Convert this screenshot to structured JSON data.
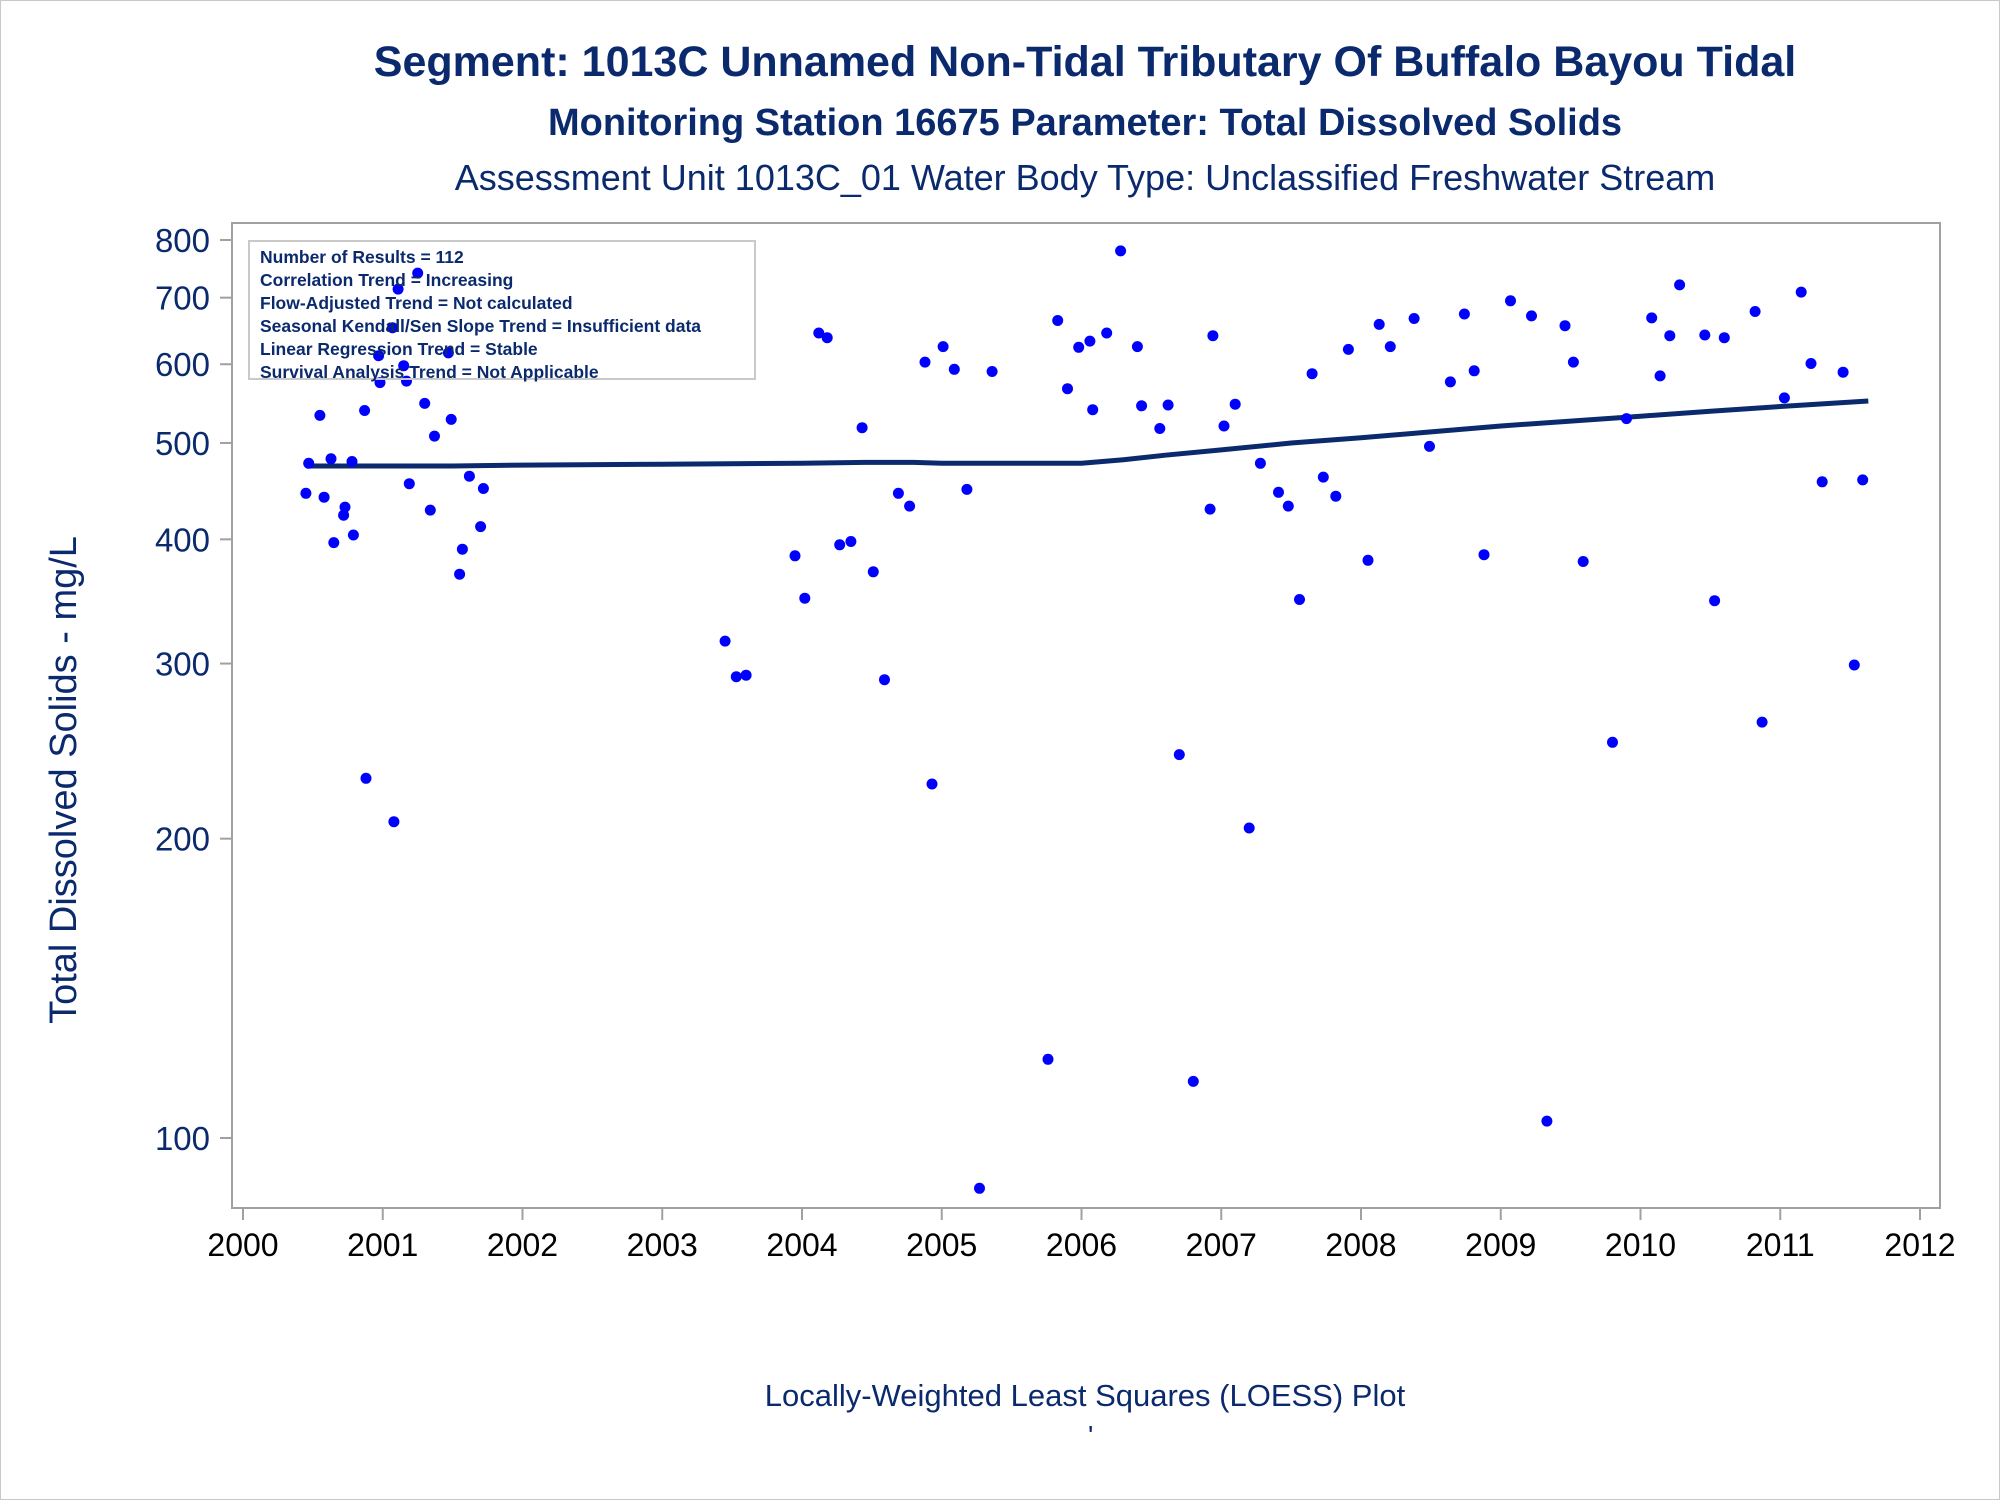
{
  "titles": {
    "line1": "Segment: 1013C  Unnamed Non-Tidal Tributary Of Buffalo Bayou Tidal",
    "line2": "Monitoring Station 16675 Parameter: Total Dissolved Solids",
    "line3": "Assessment Unit 1013C_01   Water Body Type: Unclassified Freshwater Stream"
  },
  "stats": [
    "Number of Results = 112",
    "Correlation Trend = Increasing",
    "Flow-Adjusted Trend = Not calculated",
    "Seasonal Kendall/Sen Slope Trend = Insufficient data",
    "Linear Regression Trend = Stable",
    "Survival Analysis Trend = Not Applicable"
  ],
  "footnote": "Locally-Weighted Least Squares (LOESS) Plot",
  "footnote_mark": "'",
  "colors": {
    "text": "#0b2a6e",
    "points": "#0000ff",
    "trend": "#0b2a6e",
    "axis": "#a0a0a0"
  },
  "chart_data": {
    "type": "scatter",
    "ylabel": "Total Dissolved Solids - mg/L",
    "xlabel": "",
    "y_scale": "log",
    "xlim": [
      2000,
      2012
    ],
    "ylim": [
      88,
      820
    ],
    "x_ticks": [
      "2000",
      "2001",
      "2002",
      "2003",
      "2004",
      "2005",
      "2006",
      "2007",
      "2008",
      "2009",
      "2010",
      "2011",
      "2012"
    ],
    "y_ticks": [
      100,
      200,
      300,
      400,
      500,
      600,
      700,
      800
    ],
    "grid": false,
    "series": [
      {
        "values": [
          {
            "x": 2000.45,
            "y": 445
          },
          {
            "x": 2000.47,
            "y": 477
          },
          {
            "x": 2000.55,
            "y": 533
          },
          {
            "x": 2000.58,
            "y": 441
          },
          {
            "x": 2000.63,
            "y": 482
          },
          {
            "x": 2000.65,
            "y": 397
          },
          {
            "x": 2000.72,
            "y": 423
          },
          {
            "x": 2000.73,
            "y": 431
          },
          {
            "x": 2000.78,
            "y": 479
          },
          {
            "x": 2000.79,
            "y": 404
          },
          {
            "x": 2000.87,
            "y": 539
          },
          {
            "x": 2000.88,
            "y": 230
          },
          {
            "x": 2000.97,
            "y": 612
          },
          {
            "x": 2000.98,
            "y": 575
          },
          {
            "x": 2001.07,
            "y": 653
          },
          {
            "x": 2001.08,
            "y": 208
          },
          {
            "x": 2001.11,
            "y": 714
          },
          {
            "x": 2001.15,
            "y": 598
          },
          {
            "x": 2001.17,
            "y": 577
          },
          {
            "x": 2001.19,
            "y": 455
          },
          {
            "x": 2001.25,
            "y": 741
          },
          {
            "x": 2001.3,
            "y": 548
          },
          {
            "x": 2001.34,
            "y": 428
          },
          {
            "x": 2001.37,
            "y": 508
          },
          {
            "x": 2001.47,
            "y": 616
          },
          {
            "x": 2001.49,
            "y": 528
          },
          {
            "x": 2001.55,
            "y": 369
          },
          {
            "x": 2001.57,
            "y": 391
          },
          {
            "x": 2001.62,
            "y": 463
          },
          {
            "x": 2001.7,
            "y": 412
          },
          {
            "x": 2001.72,
            "y": 450
          },
          {
            "x": 2003.45,
            "y": 316
          },
          {
            "x": 2003.53,
            "y": 291
          },
          {
            "x": 2003.6,
            "y": 292
          },
          {
            "x": 2003.95,
            "y": 385
          },
          {
            "x": 2004.02,
            "y": 349
          },
          {
            "x": 2004.12,
            "y": 645
          },
          {
            "x": 2004.18,
            "y": 638
          },
          {
            "x": 2004.27,
            "y": 395
          },
          {
            "x": 2004.35,
            "y": 398
          },
          {
            "x": 2004.43,
            "y": 518
          },
          {
            "x": 2004.51,
            "y": 371
          },
          {
            "x": 2004.59,
            "y": 289
          },
          {
            "x": 2004.69,
            "y": 445
          },
          {
            "x": 2004.77,
            "y": 432
          },
          {
            "x": 2004.88,
            "y": 603
          },
          {
            "x": 2004.93,
            "y": 227
          },
          {
            "x": 2005.01,
            "y": 625
          },
          {
            "x": 2005.09,
            "y": 593
          },
          {
            "x": 2005.18,
            "y": 449
          },
          {
            "x": 2005.27,
            "y": 89
          },
          {
            "x": 2005.36,
            "y": 590
          },
          {
            "x": 2005.76,
            "y": 120
          },
          {
            "x": 2005.83,
            "y": 664
          },
          {
            "x": 2005.9,
            "y": 567
          },
          {
            "x": 2005.98,
            "y": 624
          },
          {
            "x": 2006.06,
            "y": 633
          },
          {
            "x": 2006.08,
            "y": 540
          },
          {
            "x": 2006.18,
            "y": 645
          },
          {
            "x": 2006.28,
            "y": 780
          },
          {
            "x": 2006.4,
            "y": 625
          },
          {
            "x": 2006.43,
            "y": 545
          },
          {
            "x": 2006.56,
            "y": 517
          },
          {
            "x": 2006.62,
            "y": 546
          },
          {
            "x": 2006.7,
            "y": 243
          },
          {
            "x": 2006.8,
            "y": 114
          },
          {
            "x": 2006.92,
            "y": 429
          },
          {
            "x": 2006.94,
            "y": 641
          },
          {
            "x": 2007.02,
            "y": 520
          },
          {
            "x": 2007.1,
            "y": 547
          },
          {
            "x": 2007.2,
            "y": 205
          },
          {
            "x": 2007.28,
            "y": 477
          },
          {
            "x": 2007.41,
            "y": 446
          },
          {
            "x": 2007.48,
            "y": 432
          },
          {
            "x": 2007.56,
            "y": 348
          },
          {
            "x": 2007.65,
            "y": 587
          },
          {
            "x": 2007.73,
            "y": 462
          },
          {
            "x": 2007.82,
            "y": 442
          },
          {
            "x": 2007.91,
            "y": 621
          },
          {
            "x": 2008.05,
            "y": 381
          },
          {
            "x": 2008.13,
            "y": 658
          },
          {
            "x": 2008.21,
            "y": 625
          },
          {
            "x": 2008.38,
            "y": 667
          },
          {
            "x": 2008.49,
            "y": 496
          },
          {
            "x": 2008.64,
            "y": 576
          },
          {
            "x": 2008.74,
            "y": 674
          },
          {
            "x": 2008.81,
            "y": 591
          },
          {
            "x": 2008.88,
            "y": 386
          },
          {
            "x": 2009.07,
            "y": 695
          },
          {
            "x": 2009.22,
            "y": 671
          },
          {
            "x": 2009.33,
            "y": 104
          },
          {
            "x": 2009.46,
            "y": 656
          },
          {
            "x": 2009.52,
            "y": 603
          },
          {
            "x": 2009.59,
            "y": 380
          },
          {
            "x": 2009.8,
            "y": 250
          },
          {
            "x": 2009.9,
            "y": 529
          },
          {
            "x": 2010.08,
            "y": 668
          },
          {
            "x": 2010.14,
            "y": 584
          },
          {
            "x": 2010.21,
            "y": 641
          },
          {
            "x": 2010.28,
            "y": 721
          },
          {
            "x": 2010.46,
            "y": 642
          },
          {
            "x": 2010.53,
            "y": 347
          },
          {
            "x": 2010.6,
            "y": 638
          },
          {
            "x": 2010.82,
            "y": 678
          },
          {
            "x": 2010.87,
            "y": 262
          },
          {
            "x": 2011.03,
            "y": 555
          },
          {
            "x": 2011.15,
            "y": 709
          },
          {
            "x": 2011.22,
            "y": 601
          },
          {
            "x": 2011.3,
            "y": 457
          },
          {
            "x": 2011.45,
            "y": 589
          },
          {
            "x": 2011.53,
            "y": 299
          },
          {
            "x": 2011.59,
            "y": 459
          }
        ]
      },
      {
        "type": "line",
        "values": [
          {
            "x": 2000.47,
            "y": 474
          },
          {
            "x": 2001.5,
            "y": 474
          },
          {
            "x": 2002.0,
            "y": 475
          },
          {
            "x": 2003.0,
            "y": 476
          },
          {
            "x": 2004.0,
            "y": 477
          },
          {
            "x": 2004.45,
            "y": 478
          },
          {
            "x": 2004.8,
            "y": 478
          },
          {
            "x": 2005.0,
            "y": 477
          },
          {
            "x": 2005.5,
            "y": 477
          },
          {
            "x": 2005.9,
            "y": 477
          },
          {
            "x": 2006.0,
            "y": 477
          },
          {
            "x": 2006.3,
            "y": 481
          },
          {
            "x": 2006.6,
            "y": 486
          },
          {
            "x": 2007.0,
            "y": 492
          },
          {
            "x": 2007.5,
            "y": 500
          },
          {
            "x": 2008.0,
            "y": 506
          },
          {
            "x": 2008.5,
            "y": 513
          },
          {
            "x": 2009.0,
            "y": 520
          },
          {
            "x": 2009.5,
            "y": 526
          },
          {
            "x": 2010.0,
            "y": 532
          },
          {
            "x": 2010.5,
            "y": 538
          },
          {
            "x": 2011.0,
            "y": 544
          },
          {
            "x": 2011.63,
            "y": 551
          }
        ]
      }
    ]
  }
}
